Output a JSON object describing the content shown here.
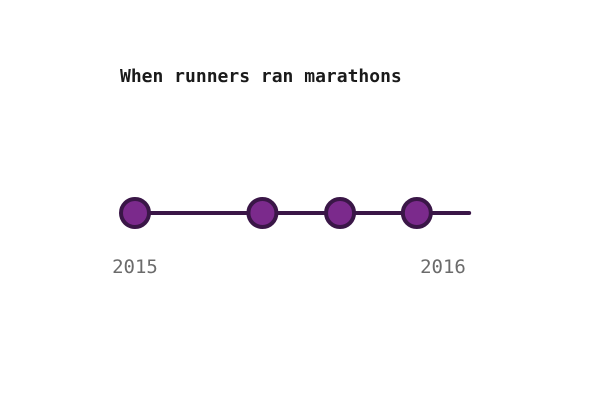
{
  "chart_data": {
    "type": "timeline",
    "title": "When runners ran marathons",
    "x_domain": [
      "2015",
      "2016"
    ],
    "events": [
      {
        "date": "2015-01-01"
      },
      {
        "date": "2015-06-01"
      },
      {
        "date": "2015-09-01"
      },
      {
        "date": "2015-12-01"
      }
    ],
    "tick_labels": [
      {
        "value": "2015-01-01",
        "label": "2015"
      },
      {
        "value": "2016-01-01",
        "label": "2016"
      }
    ],
    "line_end": "2016-02-01",
    "colors": {
      "line": "#3a1647",
      "marker_fill": "#7b2a8c",
      "marker_stroke": "#3a1647",
      "title": "#1a1a1a",
      "tick_text": "#6b6b6b"
    }
  }
}
